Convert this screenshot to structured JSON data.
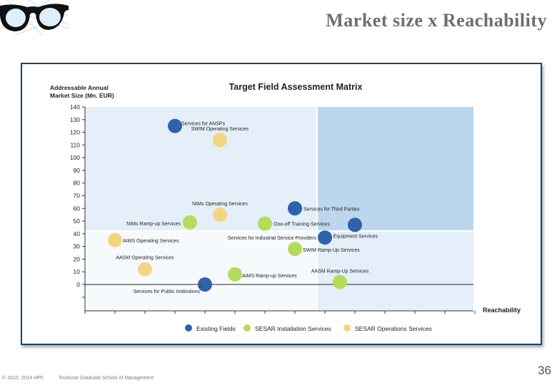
{
  "slide": {
    "title": "Market size x Reachability",
    "footer_copyright": "© 2010, 2014 HPh",
    "footer_school": "Toulouse Graduate School of Management",
    "page_number": "36"
  },
  "colors": {
    "existing": "#2e62aa",
    "installation": "#b4dc5c",
    "operations": "#f3d581",
    "frame": "#1f3f7a",
    "quad_light": "#e5eff9",
    "quad_dark": "#bcd6ee"
  },
  "chart_data": {
    "type": "scatter",
    "title": "Target Field Assessment Matrix",
    "ylabel_lines": [
      "Addressable Annual",
      "Market Size (Mn. EUR)"
    ],
    "xlabel": "Reachability",
    "ylim": [
      0,
      140
    ],
    "yticks": [
      0,
      10,
      20,
      30,
      40,
      50,
      60,
      70,
      80,
      90,
      100,
      110,
      120,
      130,
      140
    ],
    "grid": false,
    "legend_position": "bottom",
    "series": [
      {
        "name": "Existing Fields",
        "color_key": "existing",
        "points": [
          {
            "x": 3.0,
            "y": 125,
            "label": "Services for ANSPs"
          },
          {
            "x": 4.0,
            "y": 0,
            "label": "Services for Public Institutions"
          },
          {
            "x": 7.0,
            "y": 60,
            "label": "Services for Third Parties"
          },
          {
            "x": 8.0,
            "y": 37,
            "label": "Services for Industrial Service Providers"
          },
          {
            "x": 9.0,
            "y": 47,
            "label": "Equipment Services"
          }
        ]
      },
      {
        "name": "SESAR Installation Services",
        "color_key": "installation",
        "points": [
          {
            "x": 3.5,
            "y": 49,
            "label": "NIMs Ramp-up Services"
          },
          {
            "x": 5.0,
            "y": 8,
            "label": "AIMS Ramp-up Services"
          },
          {
            "x": 6.0,
            "y": 48,
            "label": "One-off Training Services"
          },
          {
            "x": 7.0,
            "y": 28,
            "label": "SWIM Ramp-Up Services"
          },
          {
            "x": 8.5,
            "y": 2,
            "label": "AASM Ramp-Up Services"
          }
        ]
      },
      {
        "name": "SESAR Operations Services",
        "color_key": "operations",
        "points": [
          {
            "x": 4.5,
            "y": 114,
            "label": "SWIM Operating Services"
          },
          {
            "x": 4.5,
            "y": 55,
            "label": "NIMs Operating Services"
          },
          {
            "x": 1.0,
            "y": 35,
            "label": "AIMS Operating Services"
          },
          {
            "x": 2.0,
            "y": 12,
            "label": "AASM Operating Services"
          }
        ]
      }
    ]
  }
}
